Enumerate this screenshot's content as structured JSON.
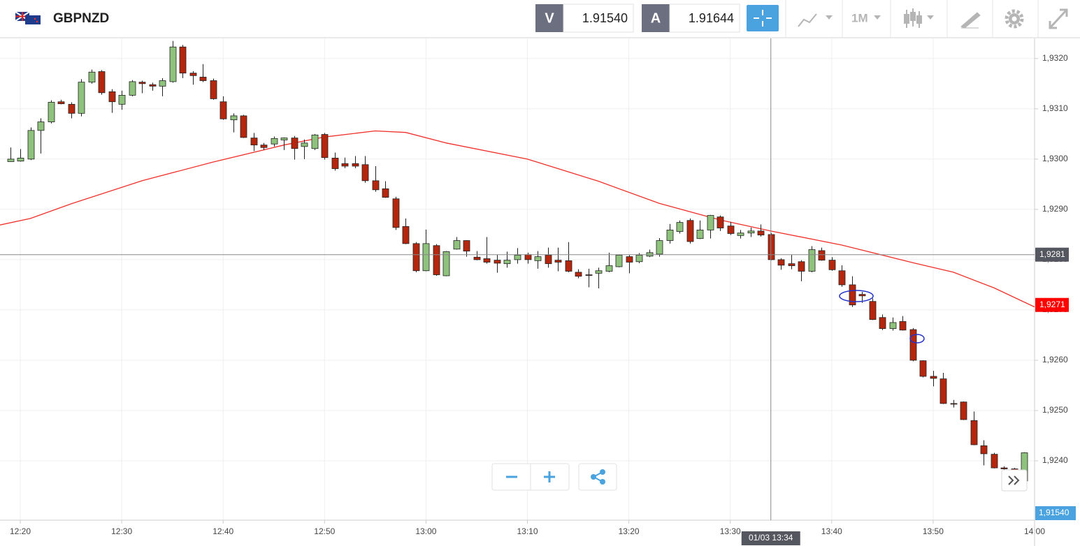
{
  "header": {
    "symbol": "GBPNZD",
    "bid_label": "V",
    "bid": "1.91540",
    "ask_label": "A",
    "ask": "1.91644",
    "timeframe": "1M"
  },
  "chart_data": {
    "type": "candlestick",
    "x": [
      "12:19",
      "12:20",
      "12:21",
      "12:22",
      "12:23",
      "12:24",
      "12:25",
      "12:26",
      "12:27",
      "12:28",
      "12:29",
      "12:30",
      "12:31",
      "12:32",
      "12:33",
      "12:34",
      "12:35",
      "12:36",
      "12:37",
      "12:38",
      "12:39",
      "12:40",
      "12:41",
      "12:42",
      "12:43",
      "12:44",
      "12:45",
      "12:46",
      "12:47",
      "12:48",
      "12:49",
      "12:50",
      "12:51",
      "12:52",
      "12:53",
      "12:54",
      "12:55",
      "12:56",
      "12:57",
      "12:58",
      "12:59",
      "13:00",
      "13:01",
      "13:02",
      "13:03",
      "13:04",
      "13:05",
      "13:06",
      "13:07",
      "13:08",
      "13:09",
      "13:10",
      "13:11",
      "13:12",
      "13:13",
      "13:14",
      "13:15",
      "13:16",
      "13:17",
      "13:18",
      "13:19",
      "13:20",
      "13:21",
      "13:22",
      "13:23",
      "13:24",
      "13:25",
      "13:26",
      "13:27",
      "13:28",
      "13:29",
      "13:30",
      "13:31",
      "13:32",
      "13:33",
      "13:34",
      "13:35",
      "13:36",
      "13:37",
      "13:38",
      "13:39",
      "13:40",
      "13:41",
      "13:42",
      "13:43",
      "13:44",
      "13:45",
      "13:46",
      "13:47",
      "13:48",
      "13:49",
      "13:50",
      "13:51",
      "13:52",
      "13:53",
      "13:54",
      "13:55",
      "13:56",
      "13:57",
      "13:58",
      "13:59"
    ],
    "values": [
      [
        1.92995,
        1.93023,
        1.92995,
        1.93
      ],
      [
        1.92996,
        1.9302,
        1.92995,
        1.93002
      ],
      [
        1.93,
        1.93063,
        1.92998,
        1.93057
      ],
      [
        1.93057,
        1.93081,
        1.93011,
        1.93074
      ],
      [
        1.93074,
        1.93117,
        1.93071,
        1.93113
      ],
      [
        1.93114,
        1.93118,
        1.93109,
        1.9311
      ],
      [
        1.93109,
        1.93113,
        1.93081,
        1.93091
      ],
      [
        1.93091,
        1.93159,
        1.93085,
        1.93153
      ],
      [
        1.93153,
        1.93178,
        1.9315,
        1.93173
      ],
      [
        1.93174,
        1.93177,
        1.93128,
        1.93132
      ],
      [
        1.93134,
        1.93139,
        1.93092,
        1.93114
      ],
      [
        1.93109,
        1.93136,
        1.93098,
        1.93127
      ],
      [
        1.93127,
        1.93157,
        1.93125,
        1.93154
      ],
      [
        1.93153,
        1.93156,
        1.93131,
        1.9315
      ],
      [
        1.93148,
        1.93152,
        1.93136,
        1.93145
      ],
      [
        1.93145,
        1.93161,
        1.93125,
        1.93156
      ],
      [
        1.93154,
        1.93235,
        1.93152,
        1.93223
      ],
      [
        1.93223,
        1.93227,
        1.93161,
        1.93171
      ],
      [
        1.93171,
        1.93175,
        1.93148,
        1.93166
      ],
      [
        1.93163,
        1.93189,
        1.93153,
        1.93156
      ],
      [
        1.93156,
        1.9316,
        1.93118,
        1.9312
      ],
      [
        1.93114,
        1.93125,
        1.93078,
        1.9308
      ],
      [
        1.93078,
        1.93091,
        1.93053,
        1.93086
      ],
      [
        1.93086,
        1.93088,
        1.93042,
        1.93043
      ],
      [
        1.93042,
        1.93052,
        1.93016,
        1.93028
      ],
      [
        1.93028,
        1.93032,
        1.93018,
        1.93023
      ],
      [
        1.9303,
        1.93045,
        1.93025,
        1.93041
      ],
      [
        1.93038,
        1.93043,
        1.93018,
        1.93042
      ],
      [
        1.93042,
        1.93046,
        1.92999,
        1.93021
      ],
      [
        1.93025,
        1.93039,
        1.93,
        1.93032
      ],
      [
        1.93021,
        1.9305,
        1.93018,
        1.93048
      ],
      [
        1.93049,
        1.93052,
        1.92999,
        1.93003
      ],
      [
        1.93002,
        1.93013,
        1.92977,
        1.92981
      ],
      [
        1.92991,
        1.93003,
        1.92982,
        1.92986
      ],
      [
        1.92991,
        1.93006,
        1.92982,
        1.92986
      ],
      [
        1.92989,
        1.93006,
        1.92953,
        1.92957
      ],
      [
        1.92957,
        1.92986,
        1.92935,
        1.92939
      ],
      [
        1.92941,
        1.92956,
        1.92923,
        1.92924
      ],
      [
        1.92921,
        1.92925,
        1.92859,
        1.92864
      ],
      [
        1.92866,
        1.92882,
        1.92831,
        1.92832
      ],
      [
        1.92832,
        1.92835,
        1.92775,
        1.92778
      ],
      [
        1.92778,
        1.9286,
        1.92777,
        1.92832
      ],
      [
        1.92828,
        1.92831,
        1.92768,
        1.9277
      ],
      [
        1.92768,
        1.92817,
        1.92767,
        1.92816
      ],
      [
        1.92821,
        1.92845,
        1.9282,
        1.92838
      ],
      [
        1.92838,
        1.92839,
        1.92806,
        1.92817
      ],
      [
        1.92805,
        1.92817,
        1.92799,
        1.928
      ],
      [
        1.92802,
        1.92845,
        1.92792,
        1.92795
      ],
      [
        1.92799,
        1.9281,
        1.92774,
        1.92793
      ],
      [
        1.92792,
        1.92816,
        1.92784,
        1.92799
      ],
      [
        1.928,
        1.92823,
        1.92792,
        1.92809
      ],
      [
        1.9281,
        1.92814,
        1.92792,
        1.928
      ],
      [
        1.92798,
        1.92817,
        1.92782,
        1.92806
      ],
      [
        1.92809,
        1.92824,
        1.92784,
        1.92792
      ],
      [
        1.92799,
        1.92824,
        1.92777,
        1.92795
      ],
      [
        1.92798,
        1.92835,
        1.92775,
        1.92777
      ],
      [
        1.92775,
        1.92781,
        1.92763,
        1.92767
      ],
      [
        1.9277,
        1.92782,
        1.92745,
        1.9277
      ],
      [
        1.92773,
        1.92784,
        1.92743,
        1.92778
      ],
      [
        1.92777,
        1.92814,
        1.92775,
        1.92788
      ],
      [
        1.92786,
        1.9281,
        1.92785,
        1.92809
      ],
      [
        1.92806,
        1.92809,
        1.92773,
        1.92795
      ],
      [
        1.92796,
        1.92813,
        1.92793,
        1.92809
      ],
      [
        1.92807,
        1.9282,
        1.92805,
        1.92814
      ],
      [
        1.92811,
        1.92843,
        1.92806,
        1.92838
      ],
      [
        1.92838,
        1.92871,
        1.92832,
        1.92859
      ],
      [
        1.92856,
        1.92878,
        1.92852,
        1.92874
      ],
      [
        1.92878,
        1.92882,
        1.92832,
        1.92836
      ],
      [
        1.92842,
        1.92878,
        1.92841,
        1.92859
      ],
      [
        1.92859,
        1.92889,
        1.92842,
        1.92888
      ],
      [
        1.92885,
        1.92888,
        1.92857,
        1.92863
      ],
      [
        1.92867,
        1.92875,
        1.92849,
        1.92852
      ],
      [
        1.92848,
        1.92859,
        1.92842,
        1.92853
      ],
      [
        1.92853,
        1.92864,
        1.92845,
        1.92857
      ],
      [
        1.92857,
        1.9287,
        1.92846,
        1.92849
      ],
      [
        1.9285,
        1.92853,
        1.92799,
        1.928
      ],
      [
        1.928,
        1.92803,
        1.9278,
        1.92789
      ],
      [
        1.92792,
        1.9281,
        1.92781,
        1.92788
      ],
      [
        1.92796,
        1.92799,
        1.92757,
        1.92777
      ],
      [
        1.92777,
        1.92827,
        1.92775,
        1.9282
      ],
      [
        1.92818,
        1.92824,
        1.92798,
        1.92799
      ],
      [
        1.92799,
        1.92805,
        1.92778,
        1.9278
      ],
      [
        1.92778,
        1.92789,
        1.92746,
        1.9275
      ],
      [
        1.9275,
        1.92767,
        1.92706,
        1.9271
      ],
      [
        1.92731,
        1.92736,
        1.92714,
        1.92728
      ],
      [
        1.92717,
        1.92723,
        1.9268,
        1.92681
      ],
      [
        1.92685,
        1.92691,
        1.9266,
        1.92663
      ],
      [
        1.92663,
        1.92685,
        1.92659,
        1.92675
      ],
      [
        1.92677,
        1.92688,
        1.92659,
        1.9266
      ],
      [
        1.92661,
        1.92664,
        1.92598,
        1.926
      ],
      [
        1.92599,
        1.926,
        1.92566,
        1.92568
      ],
      [
        1.92568,
        1.92579,
        1.92548,
        1.92564
      ],
      [
        1.92563,
        1.92575,
        1.92513,
        1.92514
      ],
      [
        1.92514,
        1.92521,
        1.92506,
        1.92514
      ],
      [
        1.92517,
        1.92518,
        1.92481,
        1.92482
      ],
      [
        1.9248,
        1.92498,
        1.92431,
        1.92432
      ],
      [
        1.9243,
        1.92441,
        1.92391,
        1.92414
      ],
      [
        1.92413,
        1.92416,
        1.92385,
        1.92386
      ],
      [
        1.92386,
        1.92389,
        1.92381,
        1.92384
      ],
      [
        1.92384,
        1.92386,
        1.92359,
        1.9236
      ],
      [
        1.9236,
        1.92417,
        1.92356,
        1.92416
      ]
    ],
    "up_color": "#8fc27c",
    "down_color": "#b5260e",
    "ma": {
      "color": "#f0302a",
      "x": [
        "12:18",
        "12:21",
        "12:25",
        "12:32",
        "12:39",
        "12:46",
        "12:50",
        "12:55",
        "12:58",
        "13:02",
        "13:10",
        "13:17",
        "13:23",
        "13:29",
        "13:34",
        "13:41",
        "13:48",
        "13:52",
        "13:56",
        "14:00"
      ],
      "values": [
        1.92869,
        1.92882,
        1.92911,
        1.92957,
        1.92994,
        1.93028,
        1.93044,
        1.93056,
        1.93053,
        1.93032,
        1.93,
        1.92956,
        1.92912,
        1.92879,
        1.92857,
        1.92829,
        1.92794,
        1.92775,
        1.92744,
        1.92706
      ]
    },
    "xlim": [
      "12:18",
      "14:00"
    ],
    "ylim": [
      1.92282,
      1.9324
    ],
    "xticks": [
      "12:20",
      "12:30",
      "12:40",
      "12:50",
      "13:00",
      "13:10",
      "13:20",
      "13:30",
      "13:40",
      "13:50",
      "14:00"
    ],
    "yticks": [
      {
        "value": 1.924,
        "label": "1,9240"
      },
      {
        "value": 1.925,
        "label": "1,9250"
      },
      {
        "value": 1.926,
        "label": "1,9260"
      },
      {
        "value": 1.927,
        "label": "1,9270"
      },
      {
        "value": 1.928,
        "label": "1,9280"
      },
      {
        "value": 1.929,
        "label": "1,9290"
      },
      {
        "value": 1.93,
        "label": "1,9300"
      },
      {
        "value": 1.931,
        "label": "1,9310"
      },
      {
        "value": 1.932,
        "label": "1,9320"
      }
    ],
    "grid": true,
    "crosshair": {
      "x": {
        "value": "13:34",
        "label": "01/03 13:34"
      },
      "y": {
        "value": 1.9281,
        "label": "1,9281"
      }
    },
    "ma_label": {
      "value": 1.9271,
      "label": "1,9271"
    },
    "price_label": "1,91540"
  }
}
